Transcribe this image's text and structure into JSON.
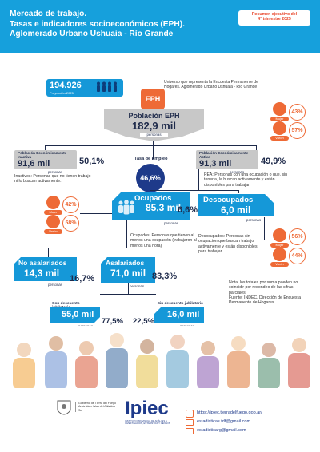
{
  "header": {
    "title_line1": "Mercado de trabajo.",
    "title_line2": "Tasas e indicadores socioeconómicos (EPH).",
    "title_line3": "Aglomerado Urbano Ushuaia - Río Grande",
    "badge_line1": "Resumen ejecutivo del",
    "badge_line2": "4° trimestre 2025"
  },
  "proyeccion": {
    "value": "194.926",
    "label": "Proyección 2025"
  },
  "universo_note": "Universo que representa la Encuesta Permanente de Hogares. Aglomerado Urbano Ushuaia - Río Grande",
  "eph_logo": "EPH",
  "poblacion": {
    "title": "Población EPH",
    "value": "182,9 mil",
    "unit": "personas"
  },
  "genero_pob": {
    "mujer_pct": "43%",
    "mujer_label": "Mujer",
    "varon_pct": "57%",
    "varon_label": "Varón"
  },
  "inactiva": {
    "label": "Población Económicamente Inactiva",
    "value": "91,6 mil",
    "unit": "personas",
    "pct": "50,1%",
    "note": "Inactivos: Personas que no tienen trabajo ni lo buscan activamente."
  },
  "activa": {
    "label": "Población Económicamente Activa",
    "value": "91,3 mil",
    "unit": "personas",
    "pct": "49,9%",
    "note": "PEA: Personas con una ocupación o que, sin tenerla, la buscan activamente y están disponibles para trabajar."
  },
  "tasa_empleo": {
    "label": "Tasa de Empleo",
    "value": "46,6%"
  },
  "ocupados": {
    "label": "Ocupados",
    "value": "85,3 mil",
    "unit": "personas",
    "note": "Ocupados: Personas que tienen al menos una ocupación (trabajaron al menos una hora)"
  },
  "genero_ocup": {
    "mujer_pct": "42%",
    "mujer_label": "Mujer",
    "varon_pct": "58%",
    "varon_label": "Varón"
  },
  "desocupados": {
    "label": "Desocupados",
    "value": "6,0 mil",
    "unit": "personas",
    "pct": "6,6%",
    "note": "Desocupados: Personas sin ocupación que buscan trabajo activamente y están disponibles para trabajar."
  },
  "genero_desoc": {
    "mujer_pct": "56%",
    "mujer_label": "Mujer",
    "varon_pct": "44%",
    "varon_label": "Varón"
  },
  "no_asalariados": {
    "label": "No asalariados",
    "value": "14,3 mil",
    "unit": "personas",
    "pct": "16,7%"
  },
  "asalariados": {
    "label": "Asalariados",
    "value": "71,0 mil",
    "unit": "personas",
    "pct": "83,3%"
  },
  "con_descuento": {
    "label": "Con descuento jubilatorio",
    "value": "55,0 mil",
    "unit": "personas",
    "pct": "77,5%"
  },
  "sin_descuento": {
    "label": "Sin descuento jubilatorio",
    "value": "16,0 mil",
    "unit": "personas",
    "pct": "22,5%"
  },
  "notas": {
    "nota": "Nota: los totales por suma pueden no coincidir por redondeo de las cifras parciales.",
    "fuente": "Fuente: INDEC, Dirección de Encuesta Permanente de Hogares."
  },
  "footer": {
    "gov_text": "Gobierno de Tierra del Fuego Antártida e Islas del Atlántico Sur",
    "ipiec_name": "Ipiec",
    "ipiec_sub": "INSTITUTO PROVINCIAL DE ANÁLISIS E INVESTIGACIÓN, ESTADÍSTICA Y CENSOS",
    "web": "https://ipiec.tierradelfuego.gob.ar/",
    "email1": "estadisticas.tdf@gmail.com",
    "email2": "estadisticarg@gmail.com"
  }
}
